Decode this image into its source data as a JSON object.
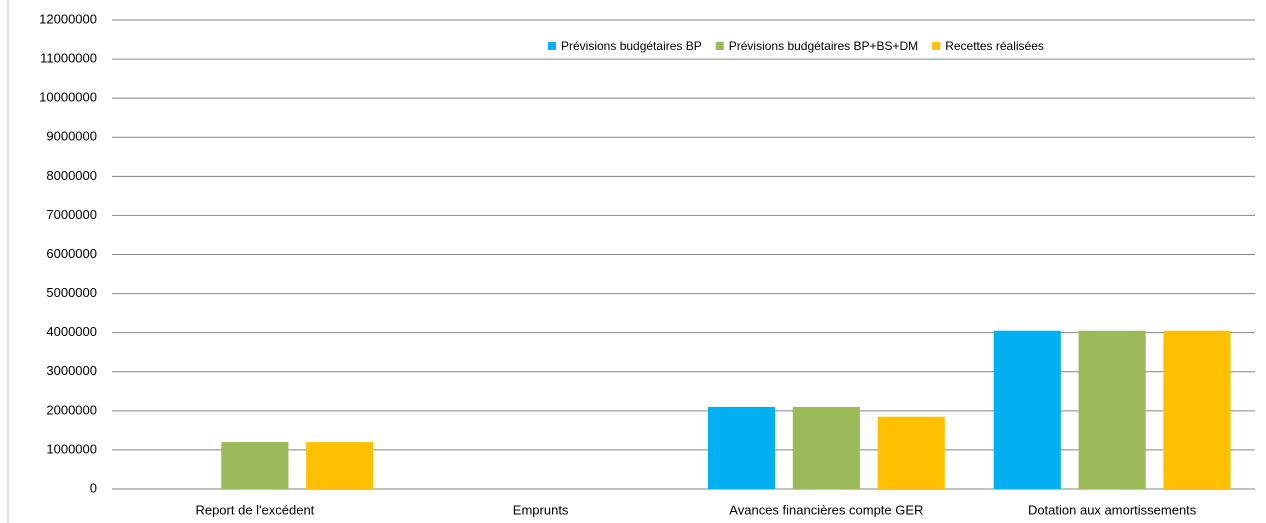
{
  "chart_data": {
    "type": "bar",
    "categories": [
      "Report de l'excédent",
      "Emprunts",
      "Avances financières compte GER",
      "Dotation aux amortissements"
    ],
    "series": [
      {
        "name": "Prévisions budgétaires BP",
        "color": "#00b0f0",
        "values": [
          0,
          0,
          2100000,
          4050000
        ]
      },
      {
        "name": "Prévisions budgétaires BP+BS+DM",
        "color": "#9bbb59",
        "values": [
          1200000,
          0,
          2100000,
          4050000
        ]
      },
      {
        "name": "Recettes réalisées",
        "color": "#ffc000",
        "values": [
          1200000,
          0,
          1850000,
          4050000
        ]
      }
    ],
    "ylim": [
      0,
      12000000
    ],
    "yticks": [
      0,
      1000000,
      2000000,
      3000000,
      4000000,
      5000000,
      6000000,
      7000000,
      8000000,
      9000000,
      10000000,
      11000000,
      12000000
    ],
    "grid": true,
    "legend": "top-right"
  }
}
